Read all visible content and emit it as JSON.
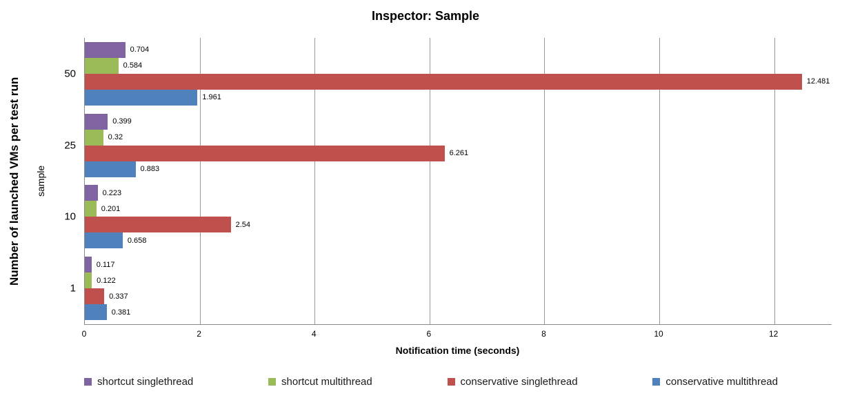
{
  "chart_data": {
    "type": "bar",
    "orientation": "horizontal",
    "title": "Inspector: Sample",
    "xlabel": "Notification time (seconds)",
    "ylabel": "Number of launched VMs per test run",
    "ylabel_secondary": "sample",
    "categories": [
      "50",
      "25",
      "10",
      "1"
    ],
    "series": [
      {
        "name": "shortcut singlethread",
        "color": "#8064A2",
        "values": [
          0.704,
          0.399,
          0.223,
          0.117
        ],
        "labels": [
          "0.704",
          "0.399",
          "0.223",
          "0.117"
        ]
      },
      {
        "name": "shortcut multithread",
        "color": "#9BBB59",
        "values": [
          0.584,
          0.32,
          0.201,
          0.122
        ],
        "labels": [
          "0.584",
          "0.32",
          "0.201",
          "0.122"
        ]
      },
      {
        "name": "conservative singlethread",
        "color": "#C0504D",
        "values": [
          12.481,
          6.261,
          2.54,
          0.337
        ],
        "labels": [
          "12.481",
          "6.261",
          "2.54",
          "0.337"
        ]
      },
      {
        "name": "conservative multithread",
        "color": "#4F81BD",
        "values": [
          1.961,
          0.883,
          0.658,
          0.381
        ],
        "labels": [
          "1.961",
          "0.883",
          "0.658",
          "0.381"
        ]
      }
    ],
    "xlim": [
      0,
      13
    ],
    "xticks": {
      "values": [
        0,
        2,
        4,
        6,
        8,
        10,
        12
      ],
      "labels": [
        "0",
        "2",
        "4",
        "6",
        "8",
        "10",
        "12"
      ]
    },
    "grid": true,
    "legend_position": "bottom",
    "colors": {
      "gridline": "#989898",
      "axis": "#898989",
      "text": "#000000"
    }
  }
}
